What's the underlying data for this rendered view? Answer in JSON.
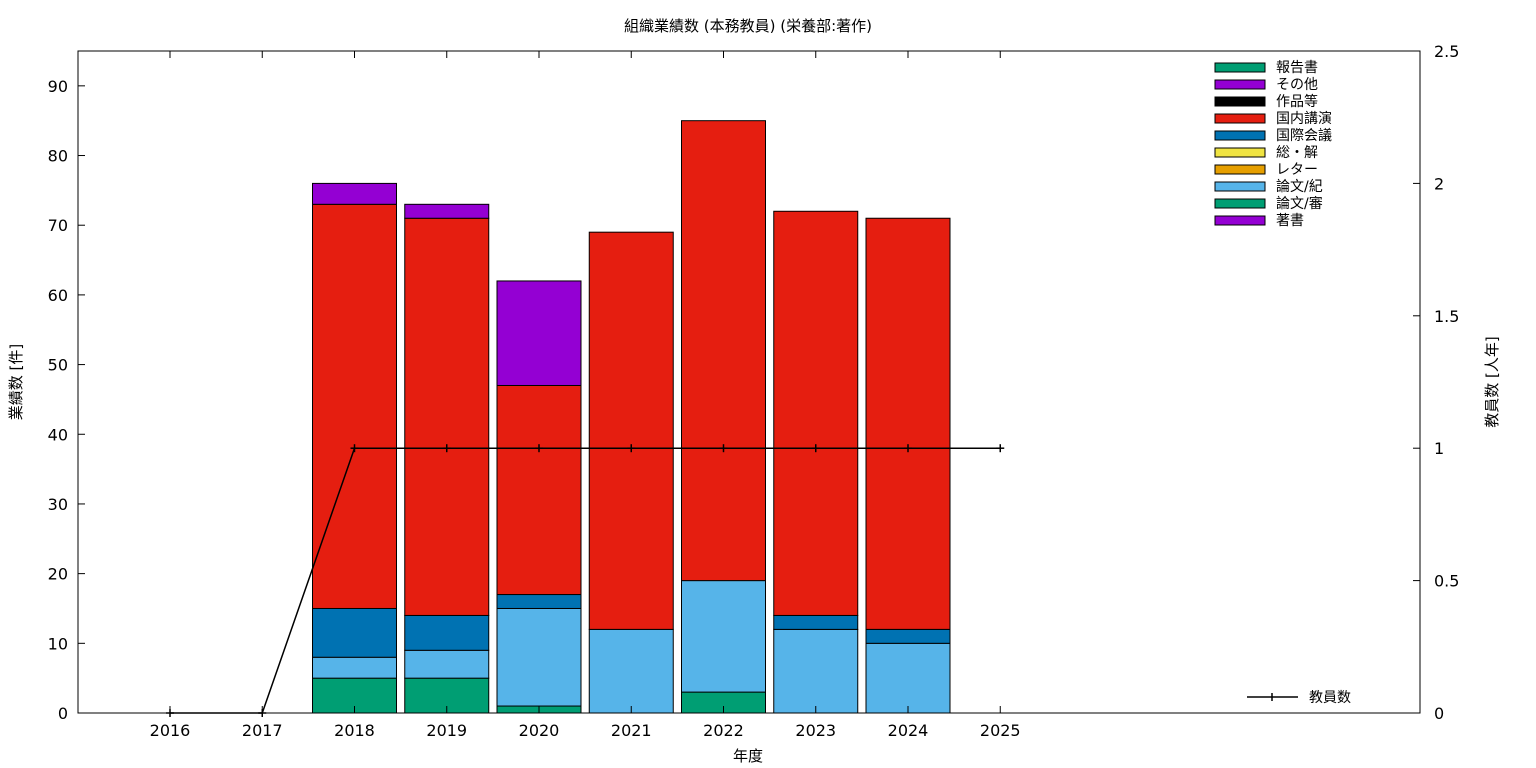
{
  "chart_data": {
    "type": "bar",
    "title": "組織業績数 (本務教員) (栄養部:著作)",
    "xlabel": "年度",
    "ylabel": "業績数 [件]",
    "y2label": "教員数 [人年]",
    "categories": [
      "2016",
      "2017",
      "2018",
      "2019",
      "2020",
      "2021",
      "2022",
      "2023",
      "2024",
      "2025"
    ],
    "ylim": [
      0,
      95
    ],
    "yticks": [
      0,
      10,
      20,
      30,
      40,
      50,
      60,
      70,
      80,
      90
    ],
    "y2lim": [
      0,
      2.5
    ],
    "y2ticks": [
      "0",
      "0.5",
      "1",
      "1.5",
      "2",
      "2.5"
    ],
    "stacked": true,
    "grid": false,
    "legend_position": "top-right",
    "series": [
      {
        "name": "著書",
        "color": "#9400d3",
        "values": [
          0,
          0,
          0,
          0,
          0,
          0,
          0,
          0,
          0,
          0
        ]
      },
      {
        "name": "論文/審",
        "color": "#009e73",
        "values": [
          0,
          0,
          5,
          5,
          1,
          0,
          3,
          0,
          0,
          0
        ]
      },
      {
        "name": "論文/紀",
        "color": "#56b4e9",
        "values": [
          0,
          0,
          3,
          4,
          14,
          12,
          16,
          12,
          10,
          0
        ]
      },
      {
        "name": "レター",
        "color": "#e69f00",
        "values": [
          0,
          0,
          0,
          0,
          0,
          0,
          0,
          0,
          0,
          0
        ]
      },
      {
        "name": "総・解",
        "color": "#f0e442",
        "values": [
          0,
          0,
          0,
          0,
          0,
          0,
          0,
          0,
          0,
          0
        ]
      },
      {
        "name": "国際会議",
        "color": "#0072b2",
        "values": [
          0,
          0,
          7,
          5,
          2,
          0,
          0,
          2,
          2,
          0
        ]
      },
      {
        "name": "国内講演",
        "color": "#e51e10",
        "values": [
          0,
          0,
          58,
          57,
          30,
          57,
          66,
          58,
          59,
          0
        ]
      },
      {
        "name": "作品等",
        "color": "#000000",
        "values": [
          0,
          0,
          0,
          0,
          0,
          0,
          0,
          0,
          0,
          0
        ]
      },
      {
        "name": "その他",
        "color": "#9400d3",
        "values": [
          0,
          0,
          3,
          2,
          15,
          0,
          0,
          0,
          0,
          0
        ]
      },
      {
        "name": "報告書",
        "color": "#009e73",
        "values": [
          0,
          0,
          0,
          0,
          0,
          0,
          0,
          0,
          0,
          0
        ]
      }
    ],
    "line_series": {
      "name": "教員数",
      "color": "#000000",
      "axis": "y2",
      "values": [
        0,
        0,
        1,
        1,
        1,
        1,
        1,
        1,
        1,
        1
      ]
    },
    "bar_years": [
      "2018",
      "2019",
      "2020",
      "2021",
      "2022",
      "2023",
      "2024"
    ]
  }
}
